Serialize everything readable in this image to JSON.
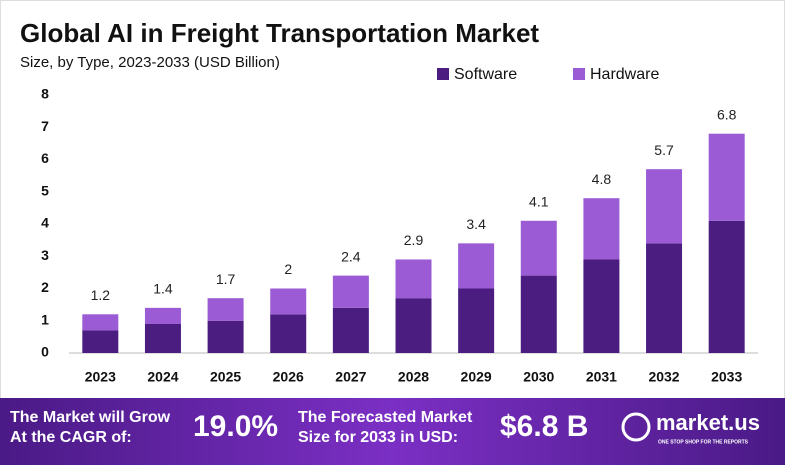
{
  "chart_data": {
    "type": "stacked_bar",
    "title": "Global AI in Freight Transportation Market",
    "subtitle": "Size, by Type, 2023-2033 (USD Billion)",
    "categories": [
      "2023",
      "2024",
      "2025",
      "2026",
      "2027",
      "2028",
      "2029",
      "2030",
      "2031",
      "2032",
      "2033"
    ],
    "series": [
      {
        "name": "Software",
        "color": "#4b1d80",
        "values": [
          0.7,
          0.9,
          1.0,
          1.2,
          1.4,
          1.7,
          2.0,
          2.4,
          2.9,
          3.4,
          4.1
        ]
      },
      {
        "name": "Hardware",
        "color": "#9b5bd4",
        "values": [
          0.5,
          0.5,
          0.7,
          0.8,
          1.0,
          1.2,
          1.4,
          1.7,
          1.9,
          2.3,
          2.7
        ]
      }
    ],
    "totals": [
      1.2,
      1.4,
      1.7,
      2.0,
      2.4,
      2.9,
      3.4,
      4.1,
      4.8,
      5.7,
      6.8
    ],
    "ylim": [
      0,
      8
    ],
    "yticks": [
      0,
      1,
      2,
      3,
      4,
      5,
      6,
      7,
      8
    ],
    "grid": false,
    "legend": "top-right"
  },
  "footer": {
    "cagr_text": [
      "The Market will Grow",
      "At the CAGR of:"
    ],
    "cagr": "19.0%",
    "forecast_text": [
      "The Forecasted Market",
      "Size for 2033 in USD:"
    ],
    "forecast": "$6.8 B",
    "brand": "market.us",
    "tagline": "ONE STOP SHOP FOR THE REPORTS"
  }
}
